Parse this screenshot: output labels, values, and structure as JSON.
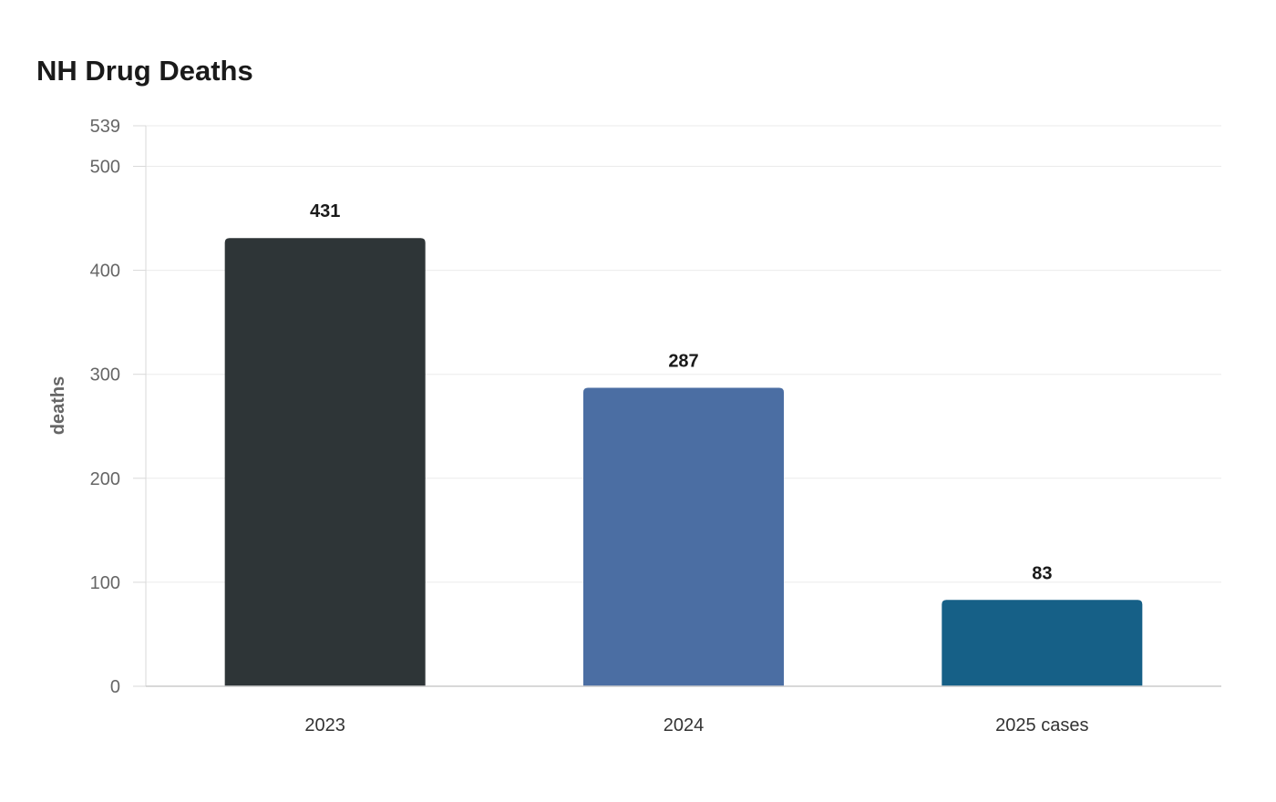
{
  "chart_data": {
    "type": "bar",
    "title": "NH Drug Deaths",
    "xlabel": "",
    "ylabel": "deaths",
    "categories": [
      "2023",
      "2024",
      "2025 cases"
    ],
    "values": [
      431,
      287,
      83
    ],
    "value_labels": [
      "431",
      "287",
      "83"
    ],
    "colors": [
      "#2e3537",
      "#4b6ea3",
      "#166087"
    ],
    "ylim": [
      0,
      539
    ],
    "yticks": [
      0,
      100,
      200,
      300,
      400,
      500,
      539
    ],
    "ytick_labels": [
      "0",
      "100",
      "200",
      "300",
      "400",
      "500",
      "539"
    ],
    "grid": true,
    "legend": "none"
  }
}
